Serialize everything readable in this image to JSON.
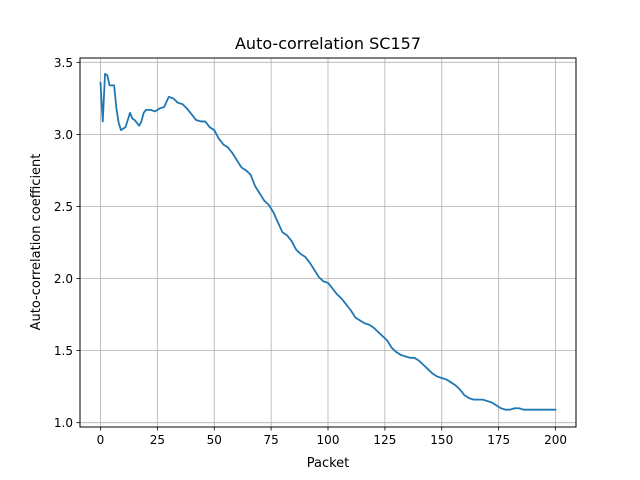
{
  "chart_data": {
    "type": "line",
    "title": "Auto-correlation SC157",
    "xlabel": "Packet",
    "ylabel": "Auto-correlation coefficient",
    "xlim": [
      -9,
      209
    ],
    "ylim": [
      0.97,
      3.53
    ],
    "grid": true,
    "legend": "none",
    "x_ticks": [
      0,
      25,
      50,
      75,
      100,
      125,
      150,
      175,
      200
    ],
    "x_tick_labels": [
      "0",
      "25",
      "50",
      "75",
      "100",
      "125",
      "150",
      "175",
      "200"
    ],
    "y_ticks": [
      1.0,
      1.5,
      2.0,
      2.5,
      3.0,
      3.5
    ],
    "y_tick_labels": [
      "1.0",
      "1.5",
      "2.0",
      "2.5",
      "3.0",
      "3.5"
    ],
    "series": [
      {
        "name": "SC157",
        "color": "#1f77b4",
        "x": [
          0,
          1,
          2,
          3,
          4,
          5,
          6,
          7,
          8,
          9,
          10,
          11,
          12,
          13,
          14,
          15,
          16,
          17,
          18,
          19,
          20,
          22,
          24,
          26,
          28,
          30,
          32,
          34,
          36,
          38,
          40,
          42,
          44,
          46,
          48,
          50,
          52,
          54,
          56,
          58,
          60,
          62,
          64,
          66,
          68,
          70,
          72,
          74,
          76,
          78,
          80,
          82,
          84,
          86,
          88,
          90,
          92,
          94,
          96,
          98,
          100,
          102,
          104,
          106,
          108,
          110,
          112,
          114,
          116,
          118,
          120,
          122,
          124,
          126,
          128,
          130,
          132,
          134,
          136,
          138,
          140,
          142,
          144,
          146,
          148,
          150,
          152,
          154,
          156,
          158,
          160,
          162,
          164,
          166,
          168,
          170,
          172,
          174,
          176,
          178,
          180,
          182,
          184,
          186,
          188,
          190,
          192,
          194,
          196,
          198,
          200
        ],
        "values": [
          3.36,
          3.09,
          3.42,
          3.41,
          3.34,
          3.34,
          3.34,
          3.18,
          3.08,
          3.03,
          3.04,
          3.05,
          3.1,
          3.15,
          3.11,
          3.1,
          3.08,
          3.06,
          3.09,
          3.15,
          3.17,
          3.17,
          3.16,
          3.18,
          3.19,
          3.26,
          3.25,
          3.22,
          3.21,
          3.18,
          3.14,
          3.1,
          3.09,
          3.09,
          3.05,
          3.03,
          2.97,
          2.93,
          2.91,
          2.87,
          2.82,
          2.77,
          2.75,
          2.72,
          2.64,
          2.59,
          2.54,
          2.51,
          2.46,
          2.39,
          2.32,
          2.3,
          2.26,
          2.2,
          2.17,
          2.15,
          2.11,
          2.06,
          2.01,
          1.98,
          1.97,
          1.93,
          1.89,
          1.86,
          1.82,
          1.78,
          1.73,
          1.71,
          1.69,
          1.68,
          1.66,
          1.63,
          1.6,
          1.57,
          1.52,
          1.49,
          1.47,
          1.46,
          1.45,
          1.45,
          1.43,
          1.4,
          1.37,
          1.34,
          1.32,
          1.31,
          1.3,
          1.28,
          1.26,
          1.23,
          1.19,
          1.17,
          1.16,
          1.16,
          1.16,
          1.15,
          1.14,
          1.12,
          1.1,
          1.09,
          1.09,
          1.1,
          1.1,
          1.09,
          1.09,
          1.09,
          1.09,
          1.09,
          1.09,
          1.09,
          1.09
        ]
      }
    ]
  }
}
